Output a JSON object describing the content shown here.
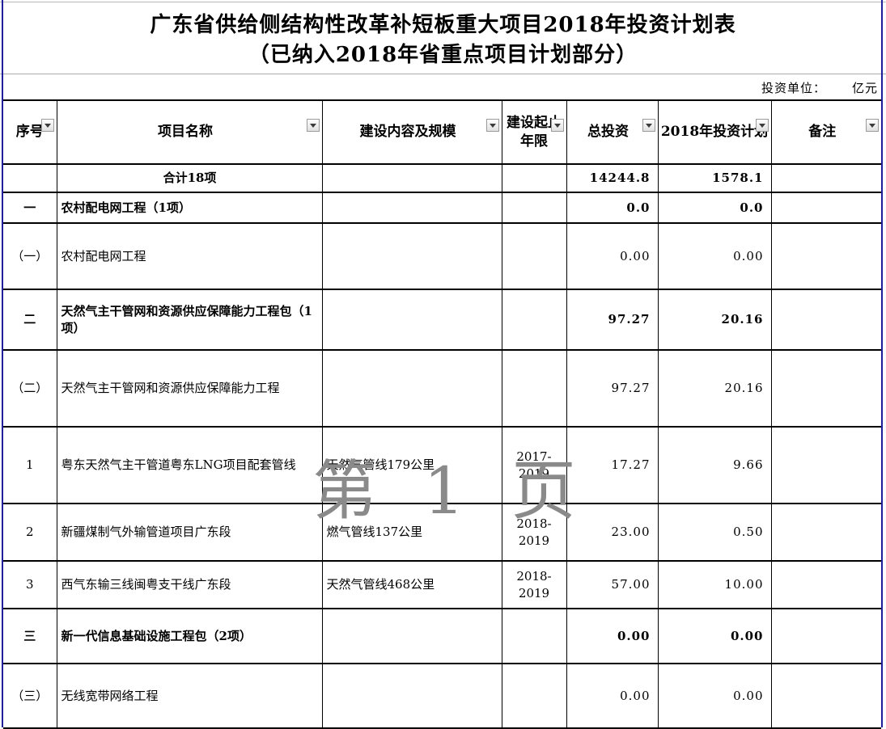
{
  "title": {
    "line1": "广东省供给侧结构性改革补短板重大项目2018年投资计划表",
    "line2": "（已纳入2018年省重点项目计划部分）"
  },
  "unit_note": {
    "label": "投资单位：",
    "value": "亿元"
  },
  "watermark": "第 1 页",
  "colors": {
    "page_edge_blue": "#1f1f9c",
    "grid_line": "#000000",
    "watermark_gray": "#8a8a8a"
  },
  "table": {
    "columns": [
      {
        "label": "序号"
      },
      {
        "label": "项目名称"
      },
      {
        "label": "建设内容及规模"
      },
      {
        "label": "建设起止年限"
      },
      {
        "label": "总投资"
      },
      {
        "label": "2018年投资计划"
      },
      {
        "label": "备注"
      }
    ],
    "rows": [
      {
        "no": "",
        "name": "合计18项",
        "content": "",
        "years": "",
        "total": "14244.8",
        "plan_2018": "1578.1",
        "note": ""
      },
      {
        "no": "一",
        "name": "农村配电网工程（1项）",
        "content": "",
        "years": "",
        "total": "0.0",
        "plan_2018": "0.0",
        "note": ""
      },
      {
        "no": "（一）",
        "name": "农村配电网工程",
        "content": "",
        "years": "",
        "total": "0.00",
        "plan_2018": "0.00",
        "note": ""
      },
      {
        "no": "二",
        "name": "天然气主干管网和资源供应保障能力工程包（1项）",
        "content": "",
        "years": "",
        "total": "97.27",
        "plan_2018": "20.16",
        "note": ""
      },
      {
        "no": "（二）",
        "name": "天然气主干管网和资源供应保障能力工程",
        "content": "",
        "years": "",
        "total": "97.27",
        "plan_2018": "20.16",
        "note": ""
      },
      {
        "no": "1",
        "name": "粤东天然气主干管道粤东LNG项目配套管线",
        "content": "天然气管线179公里",
        "years": "2017-2019",
        "total": "17.27",
        "plan_2018": "9.66",
        "note": ""
      },
      {
        "no": "2",
        "name": "新疆煤制气外输管道项目广东段",
        "content": "燃气管线137公里",
        "years": "2018-2019",
        "total": "23.00",
        "plan_2018": "0.50",
        "note": ""
      },
      {
        "no": "3",
        "name": "西气东输三线闽粤支干线广东段",
        "content": "天然气管线468公里",
        "years": "2018-2019",
        "total": "57.00",
        "plan_2018": "10.00",
        "note": ""
      },
      {
        "no": "三",
        "name": "新一代信息基础设施工程包（2项）",
        "content": "",
        "years": "",
        "total": "0.00",
        "plan_2018": "0.00",
        "note": ""
      },
      {
        "no": "（三）",
        "name": "无线宽带网络工程",
        "content": "",
        "years": "",
        "total": "0.00",
        "plan_2018": "0.00",
        "note": ""
      }
    ]
  }
}
